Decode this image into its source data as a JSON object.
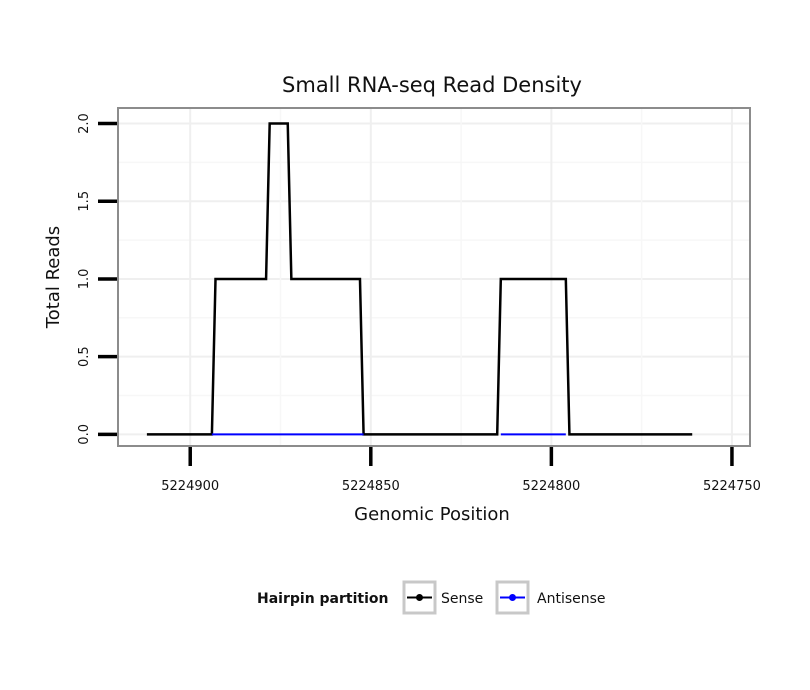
{
  "chart_data": {
    "type": "line",
    "title": "Small RNA-seq Read Density",
    "xlabel": "Genomic Position",
    "ylabel": "Total Reads",
    "xlim": [
      5224920,
      5224745
    ],
    "ylim": [
      -0.075,
      2.1
    ],
    "x_reversed": true,
    "x_ticks": [
      5224900,
      5224850,
      5224800,
      5224750
    ],
    "x_tick_labels": [
      "5224900",
      "5224850",
      "5224800",
      "5224750"
    ],
    "y_ticks": [
      0,
      0.5,
      1,
      1.5,
      2
    ],
    "y_tick_labels": [
      "0.0",
      "0.5",
      "1.0",
      "1.5",
      "2.0"
    ],
    "grid": true,
    "legend": {
      "title": "Hairpin partition",
      "position": "bottom"
    },
    "series": [
      {
        "name": "Sense",
        "color": "#000000",
        "x": [
          5224912,
          5224894,
          5224893,
          5224879,
          5224878,
          5224873,
          5224872,
          5224866,
          5224865,
          5224853,
          5224852,
          5224815,
          5224814,
          5224796,
          5224795,
          5224761
        ],
        "values": [
          0,
          0,
          1,
          1,
          2,
          2,
          1,
          1,
          1,
          1,
          0,
          0,
          1,
          1,
          0,
          0
        ]
      },
      {
        "name": "Antisense",
        "color": "#0000ff",
        "x": [
          5224894,
          5224852,
          5224814,
          5224796
        ],
        "values": [
          0,
          0,
          0,
          0
        ],
        "segments": [
          [
            5224894,
            5224852
          ],
          [
            5224814,
            5224796
          ]
        ]
      }
    ]
  }
}
